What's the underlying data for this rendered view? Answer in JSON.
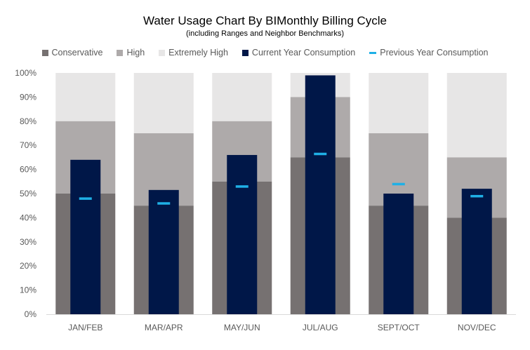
{
  "chart_data": {
    "type": "bar",
    "title": "Water Usage Chart By BIMonthly Billing Cycle",
    "subtitle": "(including Ranges and Neighbor Benchmarks)",
    "categories": [
      "JAN/FEB",
      "MAR/APR",
      "MAY/JUN",
      "JUL/AUG",
      "SEPT/OCT",
      "NOV/DEC"
    ],
    "ylim": [
      0,
      100
    ],
    "yticks": [
      "0%",
      "10%",
      "20%",
      "30%",
      "40%",
      "50%",
      "60%",
      "70%",
      "80%",
      "90%",
      "100%"
    ],
    "legend_position": "top",
    "series": [
      {
        "name": "Conservative",
        "color": "#767171",
        "values": [
          50,
          45,
          55,
          65,
          45,
          40
        ]
      },
      {
        "name": "High",
        "color": "#AEAAAA",
        "values": [
          80,
          75,
          80,
          90,
          75,
          65
        ]
      },
      {
        "name": "Extremely High",
        "color": "#E7E6E6",
        "values": [
          100,
          100,
          100,
          100,
          100,
          100
        ]
      },
      {
        "name": "Current Year Consumption",
        "color": "#001748",
        "values": [
          64,
          51.5,
          66,
          99,
          50,
          52
        ]
      },
      {
        "name": "Previous Year Consumption",
        "color": "#1FB0E6",
        "values": [
          48,
          46,
          53,
          66.5,
          54,
          49
        ]
      }
    ]
  }
}
